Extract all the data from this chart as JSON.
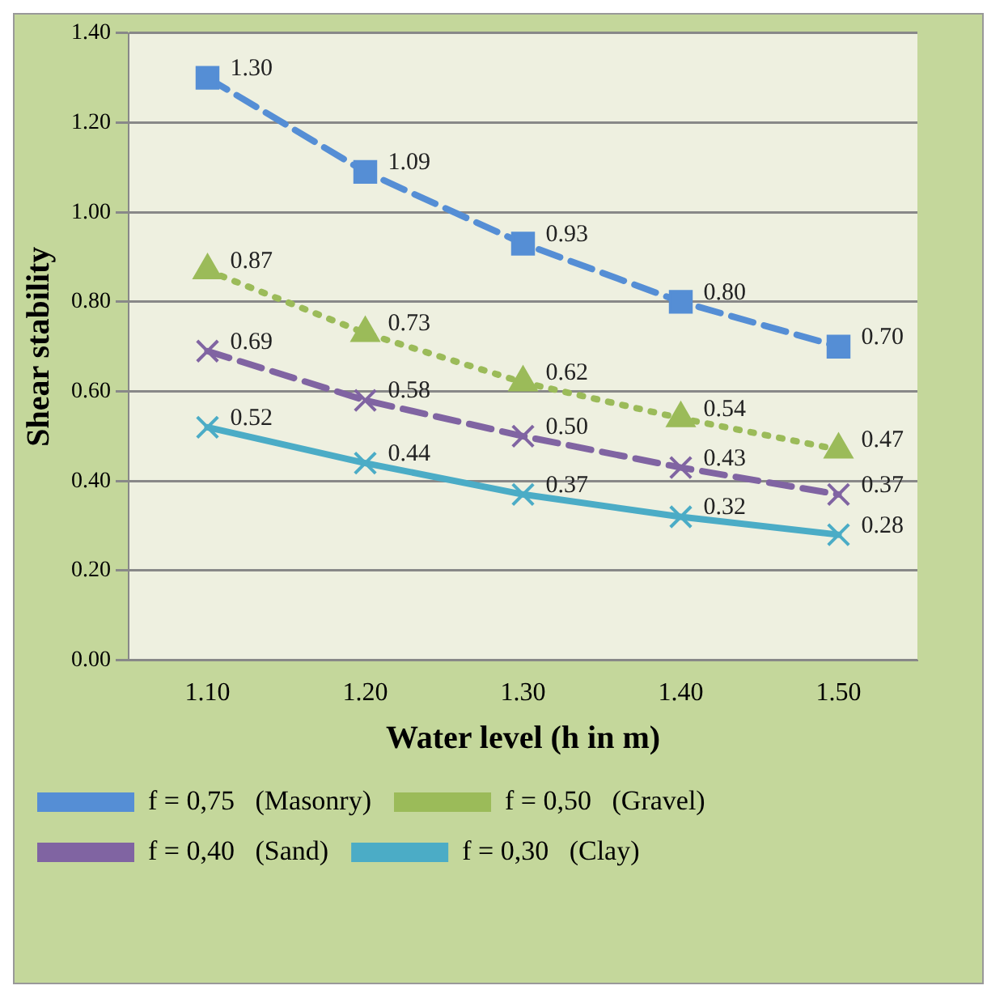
{
  "chart_data": {
    "type": "line",
    "xlabel": "Water level (h in m)",
    "ylabel": "Shear stability",
    "categories": [
      "1.10",
      "1.20",
      "1.30",
      "1.40",
      "1.50"
    ],
    "ylim": [
      0,
      1.4
    ],
    "yticks": [
      {
        "value": 0,
        "label": "0.00"
      },
      {
        "value": 0.2,
        "label": "0.20"
      },
      {
        "value": 0.4,
        "label": "0.40"
      },
      {
        "value": 0.6,
        "label": "0.60"
      },
      {
        "value": 0.8,
        "label": "0.80"
      },
      {
        "value": 1,
        "label": "1.00"
      },
      {
        "value": 1.2,
        "label": "1.20"
      },
      {
        "value": 1.4,
        "label": "1.40"
      }
    ],
    "grid": "y",
    "legend": "bottom",
    "series": [
      {
        "name": "f = 0,75   (Masonry)",
        "color": "#558ed5",
        "marker": "square",
        "line_style": "dashed",
        "values": [
          1.3,
          1.09,
          0.93,
          0.8,
          0.7
        ],
        "value_labels": [
          "1.30",
          "1.09",
          "0.93",
          "0.80",
          "0.70"
        ]
      },
      {
        "name": "f = 0,50   (Gravel)",
        "color": "#9bbb59",
        "marker": "triangle",
        "line_style": "dotted",
        "values": [
          0.87,
          0.73,
          0.62,
          0.54,
          0.47
        ],
        "value_labels": [
          "0.87",
          "0.73",
          "0.62",
          "0.54",
          "0.47"
        ]
      },
      {
        "name": "f = 0,40   (Sand)",
        "color": "#8064a2",
        "marker": "cross",
        "line_style": "dashed",
        "values": [
          0.69,
          0.58,
          0.5,
          0.43,
          0.37
        ],
        "value_labels": [
          "0.69",
          "0.58",
          "0.50",
          "0.43",
          "0.37"
        ]
      },
      {
        "name": "f = 0,30   (Clay)",
        "color": "#4bacc6",
        "marker": "cross",
        "line_style": "solid",
        "values": [
          0.52,
          0.44,
          0.37,
          0.32,
          0.28
        ],
        "value_labels": [
          "0.52",
          "0.44",
          "0.37",
          "0.32",
          "0.28"
        ]
      }
    ]
  }
}
